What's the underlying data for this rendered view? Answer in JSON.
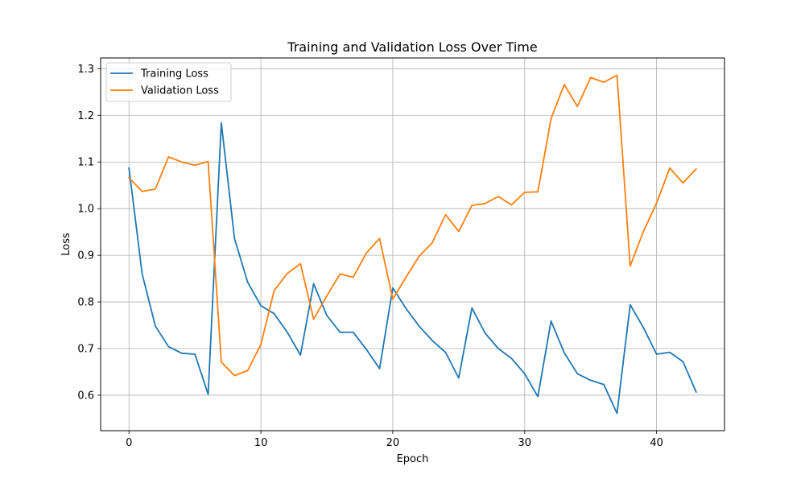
{
  "chart_data": {
    "type": "line",
    "title": "Training and Validation Loss Over Time",
    "xlabel": "Epoch",
    "ylabel": "Loss",
    "xlim": [
      -2.15,
      45.15
    ],
    "ylim": [
      0.524,
      1.323
    ],
    "xticks": [
      0,
      10,
      20,
      30,
      40
    ],
    "yticks": [
      0.6,
      0.7,
      0.8,
      0.9,
      1.0,
      1.1,
      1.2,
      1.3
    ],
    "xtick_labels": [
      "0",
      "10",
      "20",
      "30",
      "40"
    ],
    "ytick_labels": [
      "0.6",
      "0.7",
      "0.8",
      "0.9",
      "1.0",
      "1.1",
      "1.2",
      "1.3"
    ],
    "grid": true,
    "legend_position": "upper-left",
    "x": [
      0,
      1,
      2,
      3,
      4,
      5,
      6,
      7,
      8,
      9,
      10,
      11,
      12,
      13,
      14,
      15,
      16,
      17,
      18,
      19,
      20,
      21,
      22,
      23,
      24,
      25,
      26,
      27,
      28,
      29,
      30,
      31,
      32,
      33,
      34,
      35,
      36,
      37,
      38,
      39,
      40,
      41,
      42,
      43
    ],
    "series": [
      {
        "name": "Training Loss",
        "color": "#1f77b4",
        "values": [
          1.087,
          0.86,
          0.748,
          0.704,
          0.69,
          0.688,
          0.602,
          1.184,
          0.936,
          0.842,
          0.792,
          0.775,
          0.735,
          0.686,
          0.839,
          0.771,
          0.735,
          0.735,
          0.698,
          0.657,
          0.83,
          0.786,
          0.748,
          0.717,
          0.692,
          0.637,
          0.787,
          0.733,
          0.7,
          0.679,
          0.646,
          0.597,
          0.759,
          0.691,
          0.646,
          0.632,
          0.623,
          0.561,
          0.794,
          0.745,
          0.688,
          0.692,
          0.672,
          0.607
        ]
      },
      {
        "name": "Validation Loss",
        "color": "#ff7f0e",
        "values": [
          1.066,
          1.037,
          1.042,
          1.111,
          1.1,
          1.093,
          1.101,
          0.671,
          0.642,
          0.653,
          0.709,
          0.824,
          0.861,
          0.882,
          0.763,
          0.813,
          0.86,
          0.853,
          0.905,
          0.936,
          0.806,
          0.853,
          0.898,
          0.927,
          0.987,
          0.951,
          1.007,
          1.011,
          1.026,
          1.008,
          1.035,
          1.036,
          1.193,
          1.266,
          1.219,
          1.281,
          1.271,
          1.286,
          0.877,
          0.951,
          1.012,
          1.087,
          1.055,
          1.085
        ]
      }
    ]
  }
}
